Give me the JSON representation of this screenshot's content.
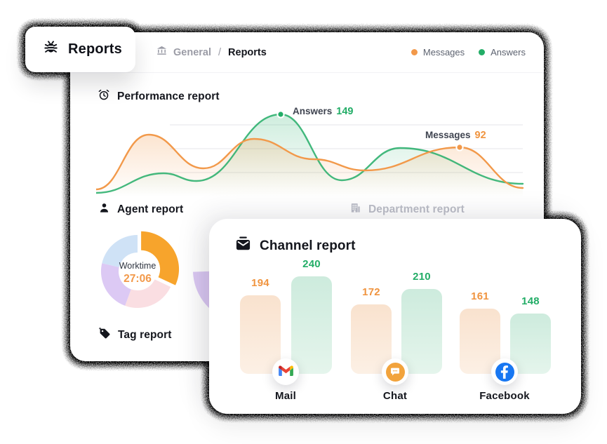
{
  "colors": {
    "orange": "#F2994A",
    "green": "#23AD67",
    "dark": "#14161D",
    "gray_text": "#9B9CA6",
    "legend_text": "#5D6370",
    "muted_title": "#BBBDC7",
    "facebook_blue": "#1877F2",
    "chat_orange": "#F2A33C",
    "donut": {
      "orange": "#F7A42C",
      "pink": "#FADEE2",
      "purple": "#DCC9F4",
      "blue": "#CFE2F6"
    }
  },
  "tab": {
    "label": "Reports",
    "icon": "bug-icon"
  },
  "header": {
    "breadcrumb": {
      "icon": "bank-icon",
      "section": "General",
      "separator": "/",
      "current": "Reports"
    },
    "legend": [
      {
        "label": "Messages",
        "color": "#F2994A"
      },
      {
        "label": "Answers",
        "color": "#23AD67"
      }
    ]
  },
  "performance": {
    "title": "Performance report",
    "icon": "alarm-clock-icon",
    "annotations": {
      "answers": {
        "label": "Answers",
        "value": "149"
      },
      "messages": {
        "label": "Messages",
        "value": "92"
      }
    },
    "chart_data": {
      "type": "area-line",
      "x_axis": "hidden",
      "y_axis": "hidden",
      "grid": "3 faint horizontal lines",
      "series": [
        {
          "name": "Messages",
          "color": "#F2994A",
          "points_est": [
            11,
            114,
            50,
            106,
            67,
            46,
            92,
            13
          ],
          "labeled_point": {
            "value": 92,
            "label": "Messages 92"
          }
        },
        {
          "name": "Answers",
          "color": "#23AD67",
          "points_est": [
            4,
            41,
            26,
            149,
            28,
            88,
            21
          ],
          "labeled_point": {
            "value": 149,
            "label": "Answers 149"
          }
        }
      ]
    }
  },
  "agent": {
    "title": "Agent report",
    "icon": "person-icon",
    "donut": {
      "center_label": "Worktime",
      "center_value": "27:06",
      "chart_data": {
        "type": "pie",
        "segments": [
          {
            "color": "#F7A42C",
            "percent_est": 32,
            "exploded": true
          },
          {
            "color": "#FADEE2",
            "percent_est": 24
          },
          {
            "color": "#DCC9F4",
            "percent_est": 23
          },
          {
            "color": "#CFE2F6",
            "percent_est": 21
          }
        ]
      }
    },
    "partial_donut_color": "#DCC9F4"
  },
  "department": {
    "title": "Department report",
    "icon": "building-icon"
  },
  "tag": {
    "title": "Tag report",
    "icon": "tag-icon"
  },
  "channel": {
    "title": "Channel report",
    "icon": "inbox-icon",
    "chart_data": {
      "type": "bar",
      "categories": [
        "Mail",
        "Chat",
        "Facebook"
      ],
      "series": [
        {
          "name": "Messages",
          "color": "#F2994A",
          "values": [
            194,
            172,
            161
          ]
        },
        {
          "name": "Answers",
          "color": "#23AD67",
          "values": [
            240,
            210,
            148
          ]
        }
      ],
      "value_labels": "shown above bars",
      "axes": "hidden"
    },
    "groups": [
      {
        "label": "Mail",
        "icon": "gmail-icon",
        "messages": 194,
        "answers": 240
      },
      {
        "label": "Chat",
        "icon": "chat-bubble-icon",
        "messages": 172,
        "answers": 210
      },
      {
        "label": "Facebook",
        "icon": "facebook-icon",
        "messages": 161,
        "answers": 148
      }
    ]
  }
}
